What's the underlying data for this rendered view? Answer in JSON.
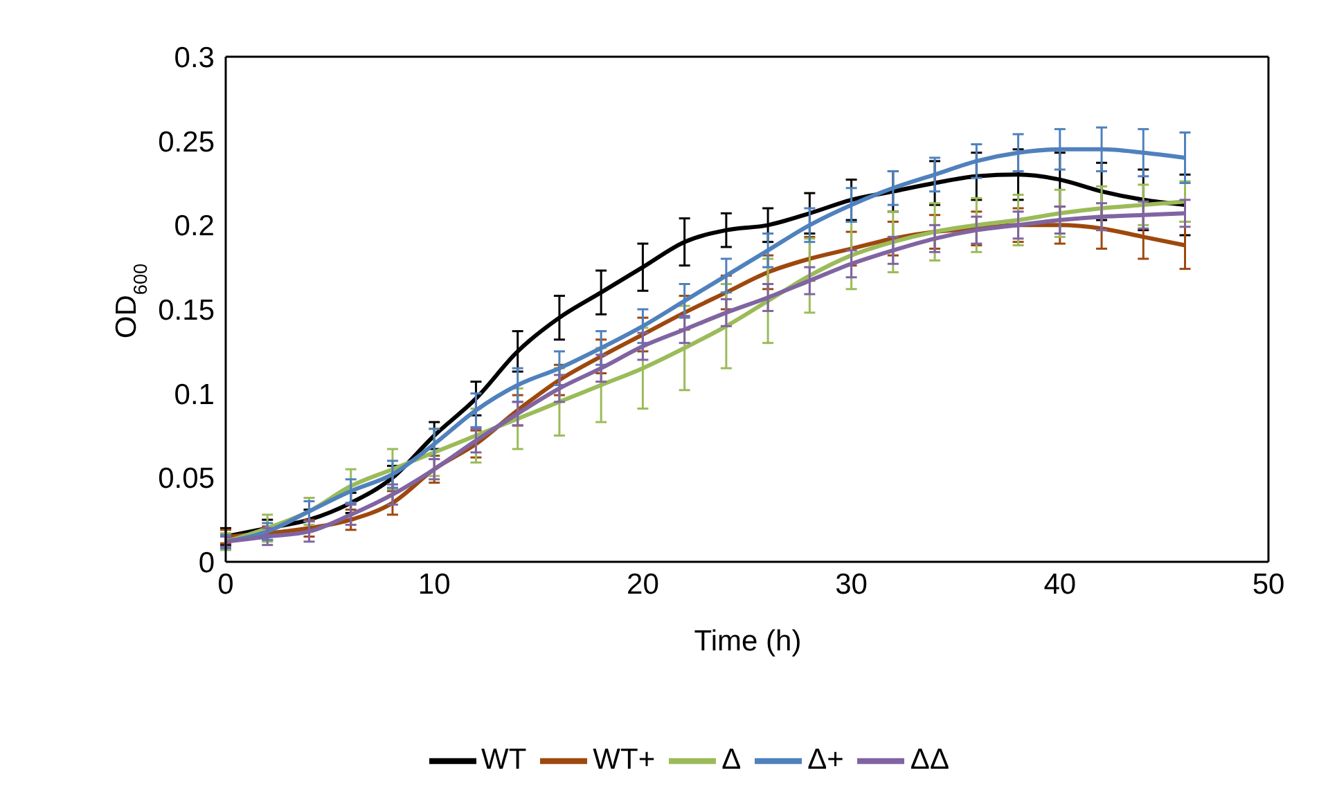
{
  "chart_data": {
    "type": "line",
    "xlabel": "Time (h)",
    "ylabel": "OD$_{600}$",
    "x": [
      0,
      2,
      4,
      6,
      8,
      10,
      12,
      14,
      16,
      18,
      20,
      22,
      24,
      26,
      28,
      30,
      32,
      34,
      36,
      38,
      40,
      42,
      44,
      46
    ],
    "series": [
      {
        "name": "WT",
        "color": "#000000",
        "values": [
          0.015,
          0.02,
          0.025,
          0.035,
          0.05,
          0.075,
          0.097,
          0.125,
          0.145,
          0.16,
          0.175,
          0.19,
          0.197,
          0.2,
          0.207,
          0.215,
          0.22,
          0.225,
          0.229,
          0.23,
          0.227,
          0.22,
          0.215,
          0.212
        ],
        "errors": [
          0.005,
          0.005,
          0.006,
          0.006,
          0.007,
          0.008,
          0.01,
          0.012,
          0.013,
          0.013,
          0.014,
          0.014,
          0.01,
          0.01,
          0.012,
          0.012,
          0.012,
          0.013,
          0.014,
          0.015,
          0.016,
          0.017,
          0.018,
          0.018
        ]
      },
      {
        "name": "WT+",
        "color": "#9e480e",
        "values": [
          0.015,
          0.017,
          0.02,
          0.025,
          0.035,
          0.055,
          0.07,
          0.09,
          0.108,
          0.122,
          0.135,
          0.148,
          0.16,
          0.172,
          0.18,
          0.186,
          0.192,
          0.196,
          0.198,
          0.2,
          0.2,
          0.198,
          0.193,
          0.188
        ],
        "errors": [
          0.004,
          0.004,
          0.005,
          0.006,
          0.007,
          0.008,
          0.008,
          0.009,
          0.009,
          0.01,
          0.01,
          0.01,
          0.01,
          0.01,
          0.013,
          0.01,
          0.01,
          0.01,
          0.01,
          0.01,
          0.011,
          0.012,
          0.013,
          0.014
        ]
      },
      {
        "name": "Δ",
        "color": "#9bbb59",
        "values": [
          0.012,
          0.02,
          0.03,
          0.045,
          0.055,
          0.065,
          0.075,
          0.085,
          0.095,
          0.105,
          0.115,
          0.127,
          0.14,
          0.155,
          0.17,
          0.182,
          0.19,
          0.196,
          0.2,
          0.203,
          0.207,
          0.21,
          0.212,
          0.214
        ],
        "errors": [
          0.005,
          0.008,
          0.008,
          0.01,
          0.012,
          0.014,
          0.016,
          0.018,
          0.02,
          0.022,
          0.024,
          0.025,
          0.025,
          0.025,
          0.022,
          0.02,
          0.018,
          0.017,
          0.016,
          0.015,
          0.014,
          0.013,
          0.012,
          0.012
        ]
      },
      {
        "name": "Δ+",
        "color": "#4f81bd",
        "values": [
          0.012,
          0.018,
          0.03,
          0.042,
          0.052,
          0.07,
          0.09,
          0.105,
          0.115,
          0.127,
          0.14,
          0.155,
          0.17,
          0.185,
          0.2,
          0.212,
          0.222,
          0.23,
          0.238,
          0.243,
          0.245,
          0.245,
          0.243,
          0.24
        ],
        "errors": [
          0.004,
          0.005,
          0.006,
          0.007,
          0.008,
          0.009,
          0.01,
          0.01,
          0.01,
          0.01,
          0.01,
          0.01,
          0.01,
          0.01,
          0.01,
          0.01,
          0.01,
          0.01,
          0.01,
          0.011,
          0.012,
          0.013,
          0.014,
          0.015
        ]
      },
      {
        "name": "ΔΔ",
        "color": "#8064a2",
        "values": [
          0.012,
          0.015,
          0.018,
          0.028,
          0.04,
          0.055,
          0.072,
          0.088,
          0.103,
          0.115,
          0.128,
          0.138,
          0.148,
          0.157,
          0.167,
          0.177,
          0.185,
          0.192,
          0.197,
          0.2,
          0.203,
          0.205,
          0.206,
          0.207
        ],
        "errors": [
          0.003,
          0.005,
          0.006,
          0.006,
          0.006,
          0.006,
          0.007,
          0.007,
          0.008,
          0.008,
          0.008,
          0.008,
          0.008,
          0.008,
          0.008,
          0.008,
          0.008,
          0.008,
          0.008,
          0.008,
          0.008,
          0.008,
          0.008,
          0.008
        ]
      }
    ],
    "xlim": [
      0,
      50
    ],
    "xticks": [
      0,
      10,
      20,
      30,
      40,
      50
    ],
    "ylim": [
      0,
      0.3
    ],
    "yticks": [
      0,
      0.05,
      0.1,
      0.15,
      0.2,
      0.25,
      0.3
    ],
    "legend": "bottom"
  }
}
